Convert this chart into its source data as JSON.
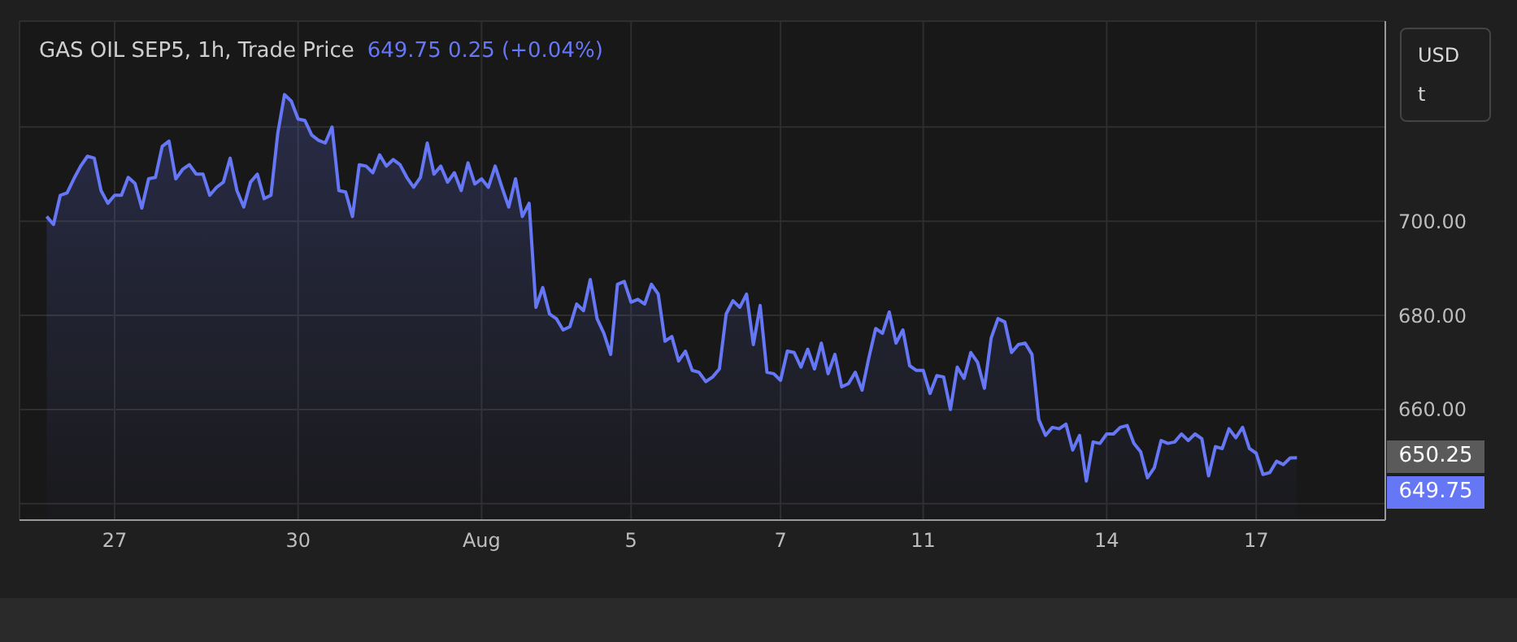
{
  "chart_data": {
    "type": "area",
    "title": "GAS OIL SEP5, 1h, Trade Price",
    "subtitle": "649.75  0.25 (+0.04%)",
    "ylabel": "USD\nt",
    "categories": [
      null,
      null,
      null,
      null,
      null,
      null,
      null,
      null,
      null,
      null,
      "27",
      null,
      null,
      null,
      null,
      null,
      null,
      null,
      null,
      null,
      null,
      null,
      null,
      null,
      null,
      null,
      null,
      null,
      null,
      null,
      null,
      null,
      null,
      null,
      null,
      null,
      null,
      "30",
      null,
      null,
      null,
      null,
      null,
      null,
      null,
      null,
      null,
      null,
      null,
      null,
      null,
      null,
      null,
      null,
      null,
      null,
      null,
      null,
      null,
      null,
      null,
      null,
      null,
      null,
      "Aug",
      null,
      null,
      null,
      null,
      null,
      null,
      null,
      null,
      null,
      null,
      null,
      null,
      null,
      null,
      null,
      null,
      null,
      null,
      null,
      null,
      null,
      "5",
      null,
      null,
      null,
      null,
      null,
      null,
      null,
      null,
      null,
      null,
      null,
      null,
      null,
      null,
      null,
      null,
      null,
      null,
      null,
      null,
      null,
      "7",
      null,
      null,
      null,
      null,
      null,
      null,
      null,
      null,
      null,
      null,
      null,
      null,
      null,
      null,
      null,
      null,
      null,
      null,
      null,
      null,
      "11",
      null,
      null,
      null,
      null,
      null,
      null,
      null,
      null,
      null,
      null,
      null,
      null,
      null,
      null,
      null,
      null,
      null,
      null,
      null,
      null,
      null,
      null,
      null,
      null,
      null,
      null,
      "14",
      null,
      null,
      null,
      null,
      null,
      null,
      null,
      null,
      null,
      null,
      null,
      null,
      null,
      null,
      null,
      null,
      null,
      null,
      null,
      null,
      null,
      "17",
      null,
      null,
      null,
      null,
      null,
      null
    ],
    "series": [
      {
        "color": "#6677f5",
        "values": [
          701,
          699.3,
          705.5,
          706,
          709,
          711.7,
          713.8,
          713.4,
          706.5,
          703.8,
          705.5,
          705.5,
          709.3,
          708,
          702.8,
          709,
          709.3,
          715.9,
          717,
          709,
          711,
          712,
          710,
          710,
          705.5,
          707.2,
          708.3,
          713.4,
          706.5,
          703,
          708.3,
          710,
          704.8,
          705.5,
          718.6,
          726.9,
          725.5,
          721.7,
          721.4,
          718.3,
          717.2,
          716.6,
          720,
          706.5,
          706.2,
          701,
          712,
          711.7,
          710.3,
          714.1,
          711.7,
          713.1,
          712,
          709.3,
          707.2,
          709.3,
          716.6,
          710,
          711.7,
          708.3,
          710.3,
          706.5,
          712.4,
          707.9,
          709,
          707.2,
          711.7,
          707.2,
          703,
          709,
          701,
          703.8,
          681.7,
          685.9,
          680.3,
          679.3,
          676.9,
          677.6,
          682.4,
          681,
          687.6,
          679.3,
          676.2,
          671.7,
          686.6,
          687.2,
          682.8,
          683.4,
          682.4,
          686.6,
          684.5,
          674.5,
          675.5,
          670.3,
          672.4,
          668.3,
          667.9,
          665.9,
          666.9,
          668.6,
          680.3,
          683.1,
          681.7,
          684.5,
          673.8,
          682.1,
          667.9,
          667.6,
          666.2,
          672.4,
          672.1,
          669,
          672.8,
          668.6,
          674.1,
          667.6,
          671.7,
          664.8,
          665.5,
          667.9,
          664.1,
          671,
          677.2,
          676.2,
          680.7,
          674.1,
          676.9,
          669.3,
          668.3,
          668.3,
          663.4,
          667.2,
          666.9,
          660,
          669,
          666.6,
          672.1,
          670,
          664.5,
          675.2,
          679.3,
          678.6,
          672.1,
          673.8,
          674.1,
          671.7,
          657.9,
          654.5,
          656.2,
          655.9,
          656.9,
          651.4,
          654.5,
          644.8,
          653.1,
          652.8,
          654.8,
          654.8,
          656.2,
          656.6,
          652.8,
          651,
          645.5,
          647.6,
          653.4,
          652.8,
          653.1,
          654.8,
          653.4,
          654.8,
          653.8,
          645.9,
          652.1,
          651.7,
          655.9,
          654,
          656.2,
          651.7,
          650.7,
          646.2,
          646.6,
          649,
          648.3,
          649.7,
          649.75
        ]
      }
    ],
    "ylim": [
      636.5,
      742.5
    ],
    "yticks": [
      {
        "value": 640,
        "label": null
      },
      {
        "value": 660,
        "label": "660.00"
      },
      {
        "value": 680,
        "label": "680.00"
      },
      {
        "value": 700,
        "label": "700.00"
      },
      {
        "value": 720,
        "label": null
      }
    ],
    "annotations": [
      "650.25",
      "649.75"
    ],
    "grid": true,
    "marker": "none",
    "line_style": "solid"
  }
}
